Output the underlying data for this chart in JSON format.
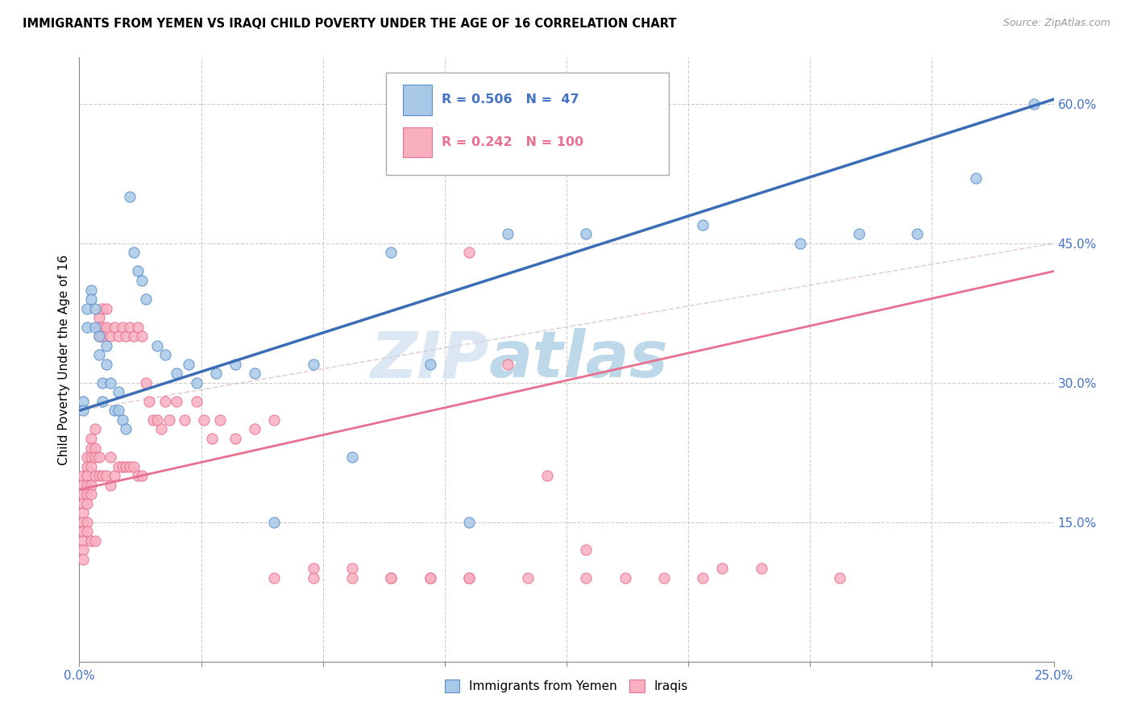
{
  "title": "IMMIGRANTS FROM YEMEN VS IRAQI CHILD POVERTY UNDER THE AGE OF 16 CORRELATION CHART",
  "source": "Source: ZipAtlas.com",
  "ylabel": "Child Poverty Under the Age of 16",
  "xlim": [
    0.0,
    0.25
  ],
  "ylim": [
    0.0,
    0.65
  ],
  "xtick_positions": [
    0.0,
    0.03125,
    0.0625,
    0.09375,
    0.125,
    0.15625,
    0.1875,
    0.21875,
    0.25
  ],
  "xticklabels_shown": {
    "0.0": "0.0%",
    "0.25": "25.0%"
  },
  "yticks_right": [
    0.15,
    0.3,
    0.45,
    0.6
  ],
  "yticklabels_right": [
    "15.0%",
    "30.0%",
    "45.0%",
    "60.0%"
  ],
  "series1_color": "#A8C8E8",
  "series1_edge": "#5B8EC8",
  "series2_color": "#F8B0C0",
  "series2_edge": "#E87090",
  "line1_color": "#3A6DB5",
  "line2_color": "#E87090",
  "watermark": "ZIPatlas",
  "watermark_color": "#C8DCF0",
  "blue_line_x0": 0.0,
  "blue_line_y0": 0.27,
  "blue_line_x1": 0.25,
  "blue_line_y1": 0.605,
  "pink_line_x0": 0.0,
  "pink_line_y0": 0.185,
  "pink_line_x1": 0.25,
  "pink_line_y1": 0.42,
  "blue_x": [
    0.001,
    0.001,
    0.002,
    0.002,
    0.003,
    0.003,
    0.004,
    0.004,
    0.005,
    0.005,
    0.006,
    0.006,
    0.007,
    0.007,
    0.008,
    0.009,
    0.01,
    0.01,
    0.011,
    0.012,
    0.013,
    0.014,
    0.015,
    0.016,
    0.017,
    0.02,
    0.022,
    0.025,
    0.028,
    0.03,
    0.035,
    0.04,
    0.045,
    0.05,
    0.06,
    0.07,
    0.08,
    0.09,
    0.1,
    0.11,
    0.13,
    0.16,
    0.185,
    0.2,
    0.215,
    0.23,
    0.245
  ],
  "blue_y": [
    0.28,
    0.27,
    0.38,
    0.36,
    0.4,
    0.39,
    0.38,
    0.36,
    0.35,
    0.33,
    0.3,
    0.28,
    0.34,
    0.32,
    0.3,
    0.27,
    0.29,
    0.27,
    0.26,
    0.25,
    0.5,
    0.44,
    0.42,
    0.41,
    0.39,
    0.34,
    0.33,
    0.31,
    0.32,
    0.3,
    0.31,
    0.32,
    0.31,
    0.15,
    0.32,
    0.22,
    0.44,
    0.32,
    0.15,
    0.46,
    0.46,
    0.47,
    0.45,
    0.46,
    0.46,
    0.52,
    0.6
  ],
  "pink_x": [
    0.001,
    0.001,
    0.001,
    0.001,
    0.001,
    0.001,
    0.001,
    0.001,
    0.001,
    0.001,
    0.002,
    0.002,
    0.002,
    0.002,
    0.002,
    0.002,
    0.002,
    0.002,
    0.003,
    0.003,
    0.003,
    0.003,
    0.003,
    0.003,
    0.003,
    0.004,
    0.004,
    0.004,
    0.004,
    0.004,
    0.005,
    0.005,
    0.005,
    0.005,
    0.005,
    0.006,
    0.006,
    0.006,
    0.006,
    0.007,
    0.007,
    0.007,
    0.008,
    0.008,
    0.008,
    0.009,
    0.009,
    0.01,
    0.01,
    0.011,
    0.011,
    0.012,
    0.012,
    0.013,
    0.013,
    0.014,
    0.014,
    0.015,
    0.015,
    0.016,
    0.016,
    0.017,
    0.018,
    0.019,
    0.02,
    0.021,
    0.022,
    0.023,
    0.025,
    0.027,
    0.03,
    0.032,
    0.034,
    0.036,
    0.04,
    0.045,
    0.05,
    0.06,
    0.07,
    0.08,
    0.09,
    0.1,
    0.115,
    0.13,
    0.16,
    0.165,
    0.175,
    0.195,
    0.1,
    0.11,
    0.12,
    0.13,
    0.14,
    0.15,
    0.05,
    0.06,
    0.07,
    0.08,
    0.09,
    0.1
  ],
  "pink_y": [
    0.2,
    0.19,
    0.18,
    0.17,
    0.16,
    0.15,
    0.14,
    0.13,
    0.12,
    0.11,
    0.22,
    0.21,
    0.2,
    0.19,
    0.18,
    0.17,
    0.15,
    0.14,
    0.24,
    0.23,
    0.22,
    0.21,
    0.19,
    0.18,
    0.13,
    0.25,
    0.23,
    0.22,
    0.2,
    0.13,
    0.37,
    0.36,
    0.35,
    0.22,
    0.2,
    0.38,
    0.36,
    0.35,
    0.2,
    0.38,
    0.36,
    0.2,
    0.35,
    0.22,
    0.19,
    0.36,
    0.2,
    0.35,
    0.21,
    0.36,
    0.21,
    0.35,
    0.21,
    0.36,
    0.21,
    0.35,
    0.21,
    0.36,
    0.2,
    0.35,
    0.2,
    0.3,
    0.28,
    0.26,
    0.26,
    0.25,
    0.28,
    0.26,
    0.28,
    0.26,
    0.28,
    0.26,
    0.24,
    0.26,
    0.24,
    0.25,
    0.26,
    0.1,
    0.1,
    0.09,
    0.09,
    0.09,
    0.09,
    0.09,
    0.09,
    0.1,
    0.1,
    0.09,
    0.44,
    0.32,
    0.2,
    0.12,
    0.09,
    0.09,
    0.09,
    0.09,
    0.09,
    0.09,
    0.09,
    0.09
  ]
}
